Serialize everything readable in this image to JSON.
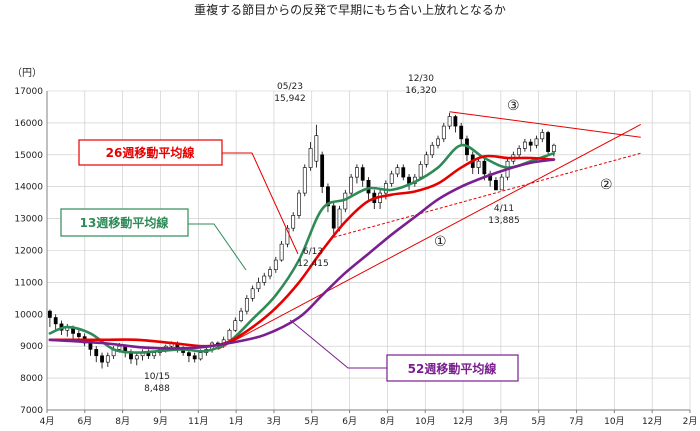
{
  "chart_data": {
    "type": "candlestick",
    "title": "重複する節目からの反発で早期にもち合い上放れとなるか",
    "ylabel": "（円）",
    "ylim": [
      7000,
      17000
    ],
    "yticks": [
      7000,
      8000,
      9000,
      10000,
      11000,
      12000,
      13000,
      14000,
      15000,
      16000,
      17000
    ],
    "ytick_labels": [
      "7000",
      "8000",
      "9000",
      "10000",
      "11000",
      "12000",
      "13000",
      "14000",
      "15000",
      "16000",
      "17000"
    ],
    "xtick_labels": [
      "4月",
      "6月",
      "8月",
      "9月",
      "11月",
      "1月",
      "3月",
      "5月",
      "6月",
      "8月",
      "10月",
      "12月",
      "3月",
      "5月",
      "7月",
      "10月",
      "12月",
      "2月"
    ],
    "grid": true,
    "candles": [
      [
        1,
        10100,
        9900,
        10150,
        9600
      ],
      [
        2,
        9900,
        9700,
        10000,
        9500
      ],
      [
        3,
        9700,
        9500,
        9800,
        9350
      ],
      [
        4,
        9500,
        9600,
        9700,
        9300
      ],
      [
        5,
        9600,
        9400,
        9650,
        9200
      ],
      [
        6,
        9400,
        9300,
        9500,
        9150
      ],
      [
        7,
        9300,
        9100,
        9400,
        9000
      ],
      [
        8,
        9100,
        8900,
        9200,
        8700
      ],
      [
        9,
        8900,
        8700,
        9000,
        8500
      ],
      [
        10,
        8700,
        8500,
        8800,
        8300
      ],
      [
        11,
        8500,
        8700,
        8800,
        8350
      ],
      [
        12,
        8700,
        8900,
        9000,
        8600
      ],
      [
        13,
        8900,
        9000,
        9100,
        8800
      ],
      [
        14,
        9000,
        8800,
        9050,
        8650
      ],
      [
        15,
        8800,
        8600,
        8900,
        8450
      ],
      [
        16,
        8600,
        8700,
        8800,
        8400
      ],
      [
        17,
        8700,
        8800,
        8900,
        8550
      ],
      [
        18,
        8800,
        8700,
        8900,
        8600
      ],
      [
        19,
        8700,
        8800,
        8850,
        8600
      ],
      [
        20,
        8800,
        8900,
        8950,
        8700
      ],
      [
        21,
        8900,
        9000,
        9050,
        8800
      ],
      [
        22,
        9000,
        9100,
        9150,
        8900
      ],
      [
        23,
        9100,
        8900,
        9150,
        8800
      ],
      [
        24,
        8900,
        8800,
        9000,
        8700
      ],
      [
        25,
        8800,
        8700,
        8900,
        8500
      ],
      [
        26,
        8700,
        8600,
        8800,
        8488
      ],
      [
        27,
        8600,
        8800,
        8900,
        8550
      ],
      [
        28,
        8800,
        8900,
        9000,
        8700
      ],
      [
        29,
        8900,
        9100,
        9150,
        8800
      ],
      [
        30,
        9100,
        9000,
        9150,
        8900
      ],
      [
        31,
        9000,
        9200,
        9300,
        8950
      ],
      [
        32,
        9200,
        9500,
        9550,
        9150
      ],
      [
        33,
        9500,
        9800,
        9900,
        9450
      ],
      [
        34,
        9800,
        10100,
        10200,
        9750
      ],
      [
        35,
        10100,
        10500,
        10600,
        10000
      ],
      [
        36,
        10500,
        10800,
        10900,
        10400
      ],
      [
        37,
        10800,
        11000,
        11150,
        10700
      ],
      [
        38,
        11000,
        11200,
        11300,
        10900
      ],
      [
        39,
        11200,
        11400,
        11500,
        11100
      ],
      [
        40,
        11400,
        11700,
        11800,
        11300
      ],
      [
        41,
        11700,
        12200,
        12300,
        11650
      ],
      [
        42,
        12200,
        12700,
        12800,
        12100
      ],
      [
        43,
        12700,
        13100,
        13200,
        12600
      ],
      [
        44,
        13100,
        13800,
        13900,
        13000
      ],
      [
        45,
        13800,
        14600,
        14700,
        13700
      ],
      [
        46,
        14600,
        15200,
        15400,
        14500
      ],
      [
        47,
        14800,
        15600,
        15942,
        14600
      ],
      [
        48,
        15000,
        14000,
        15100,
        13800
      ],
      [
        49,
        14000,
        13400,
        14100,
        13200
      ],
      [
        50,
        13400,
        12700,
        13500,
        12415
      ],
      [
        51,
        12700,
        13300,
        13400,
        12600
      ],
      [
        52,
        13300,
        13800,
        13900,
        13200
      ],
      [
        53,
        13800,
        14300,
        14400,
        13700
      ],
      [
        54,
        14300,
        14600,
        14700,
        14100
      ],
      [
        55,
        14600,
        14200,
        14700,
        14000
      ],
      [
        56,
        14200,
        13800,
        14300,
        13600
      ],
      [
        57,
        13800,
        13500,
        13900,
        13300
      ],
      [
        58,
        13500,
        13800,
        13900,
        13300
      ],
      [
        59,
        13800,
        14100,
        14200,
        13600
      ],
      [
        60,
        14100,
        14400,
        14500,
        14000
      ],
      [
        61,
        14400,
        14600,
        14700,
        14300
      ],
      [
        62,
        14600,
        14300,
        14700,
        14200
      ],
      [
        63,
        14300,
        14100,
        14400,
        13900
      ],
      [
        64,
        14100,
        14300,
        14400,
        14000
      ],
      [
        65,
        14300,
        14700,
        14800,
        14200
      ],
      [
        66,
        14700,
        15000,
        15100,
        14600
      ],
      [
        67,
        15000,
        15300,
        15400,
        14900
      ],
      [
        68,
        15300,
        15500,
        15600,
        15200
      ],
      [
        69,
        15500,
        15900,
        16000,
        15400
      ],
      [
        70,
        15900,
        16200,
        16320,
        15800
      ],
      [
        71,
        16200,
        15900,
        16250,
        15700
      ],
      [
        72,
        15900,
        15500,
        16000,
        15300
      ],
      [
        73,
        15500,
        15000,
        15600,
        14800
      ],
      [
        74,
        15000,
        14600,
        15100,
        14400
      ],
      [
        75,
        14600,
        14800,
        14900,
        14400
      ],
      [
        76,
        14800,
        14400,
        14900,
        14200
      ],
      [
        77,
        14400,
        14200,
        14500,
        14000
      ],
      [
        78,
        14200,
        13900,
        14300,
        13885
      ],
      [
        79,
        13900,
        14300,
        14400,
        13900
      ],
      [
        80,
        14300,
        14800,
        14900,
        14200
      ],
      [
        81,
        14800,
        15000,
        15100,
        14700
      ],
      [
        82,
        15000,
        15200,
        15300,
        14900
      ],
      [
        83,
        15200,
        15400,
        15500,
        15100
      ],
      [
        84,
        15400,
        15300,
        15500,
        15100
      ],
      [
        85,
        15300,
        15500,
        15600,
        15200
      ],
      [
        86,
        15500,
        15700,
        15800,
        15400
      ],
      [
        87,
        15700,
        15100,
        15750,
        14950
      ],
      [
        88,
        15100,
        15300,
        15350,
        14950
      ]
    ],
    "series": [
      {
        "name": "13週移動平均線",
        "color": "#2e8b57",
        "points": [
          [
            1,
            9400
          ],
          [
            4,
            9600
          ],
          [
            8,
            9400
          ],
          [
            12,
            8900
          ],
          [
            16,
            8800
          ],
          [
            20,
            8850
          ],
          [
            24,
            8900
          ],
          [
            28,
            8850
          ],
          [
            32,
            9150
          ],
          [
            36,
            9850
          ],
          [
            40,
            10600
          ],
          [
            44,
            11700
          ],
          [
            48,
            13300
          ],
          [
            52,
            13600
          ],
          [
            56,
            13950
          ],
          [
            60,
            13900
          ],
          [
            64,
            14150
          ],
          [
            68,
            14600
          ],
          [
            72,
            15300
          ],
          [
            76,
            14900
          ],
          [
            80,
            14600
          ],
          [
            84,
            14800
          ],
          [
            88,
            15050
          ]
        ]
      },
      {
        "name": "26週移動平均線",
        "color": "#e60000",
        "points": [
          [
            1,
            9200
          ],
          [
            10,
            9200
          ],
          [
            16,
            9200
          ],
          [
            22,
            9100
          ],
          [
            28,
            9000
          ],
          [
            32,
            9150
          ],
          [
            36,
            9600
          ],
          [
            40,
            10200
          ],
          [
            44,
            11000
          ],
          [
            48,
            12000
          ],
          [
            52,
            12900
          ],
          [
            56,
            13550
          ],
          [
            60,
            13750
          ],
          [
            64,
            13850
          ],
          [
            68,
            14100
          ],
          [
            72,
            14600
          ],
          [
            76,
            14950
          ],
          [
            80,
            14900
          ],
          [
            84,
            14900
          ],
          [
            88,
            14850
          ]
        ]
      },
      {
        "name": "52週移動平均線",
        "color": "#7a1f8f",
        "points": [
          [
            1,
            9200
          ],
          [
            10,
            9100
          ],
          [
            18,
            8950
          ],
          [
            26,
            8950
          ],
          [
            32,
            9100
          ],
          [
            38,
            9350
          ],
          [
            44,
            9900
          ],
          [
            48,
            10600
          ],
          [
            52,
            11300
          ],
          [
            56,
            11900
          ],
          [
            60,
            12500
          ],
          [
            64,
            13050
          ],
          [
            68,
            13600
          ],
          [
            72,
            14000
          ],
          [
            76,
            14300
          ],
          [
            80,
            14550
          ],
          [
            84,
            14750
          ],
          [
            88,
            14850
          ]
        ]
      }
    ],
    "trendlines": [
      {
        "label": "①",
        "color": "#e60000",
        "dash": false,
        "from": [
          30,
          8900
        ],
        "to": [
          103,
          15950
        ]
      },
      {
        "label": "②",
        "color": "#e60000",
        "dash": true,
        "from": [
          50,
          12415
        ],
        "to": [
          103,
          15050
        ]
      },
      {
        "label": "③",
        "color": "#e60000",
        "dash": false,
        "from": [
          70,
          16350
        ],
        "to": [
          103,
          15550
        ]
      }
    ],
    "annotations": [
      {
        "id": "high-0523",
        "date": "05/23",
        "value": "15,942"
      },
      {
        "id": "low-0613",
        "date": "6/13",
        "value": "12,415"
      },
      {
        "id": "high-1230",
        "date": "12/30",
        "value": "16,320"
      },
      {
        "id": "low-0411",
        "date": "4/11",
        "value": "13,885"
      },
      {
        "id": "low-1015",
        "date": "10/15",
        "value": "8,488"
      }
    ],
    "legend_labels": {
      "ma13": "13週移動平均線",
      "ma26": "26週移動平均線",
      "ma52": "52週移動平均線"
    },
    "colors": {
      "up_candle": "#ffffff",
      "down_candle": "#000000",
      "grid": "#c8c8c8",
      "axis": "#808080"
    }
  }
}
